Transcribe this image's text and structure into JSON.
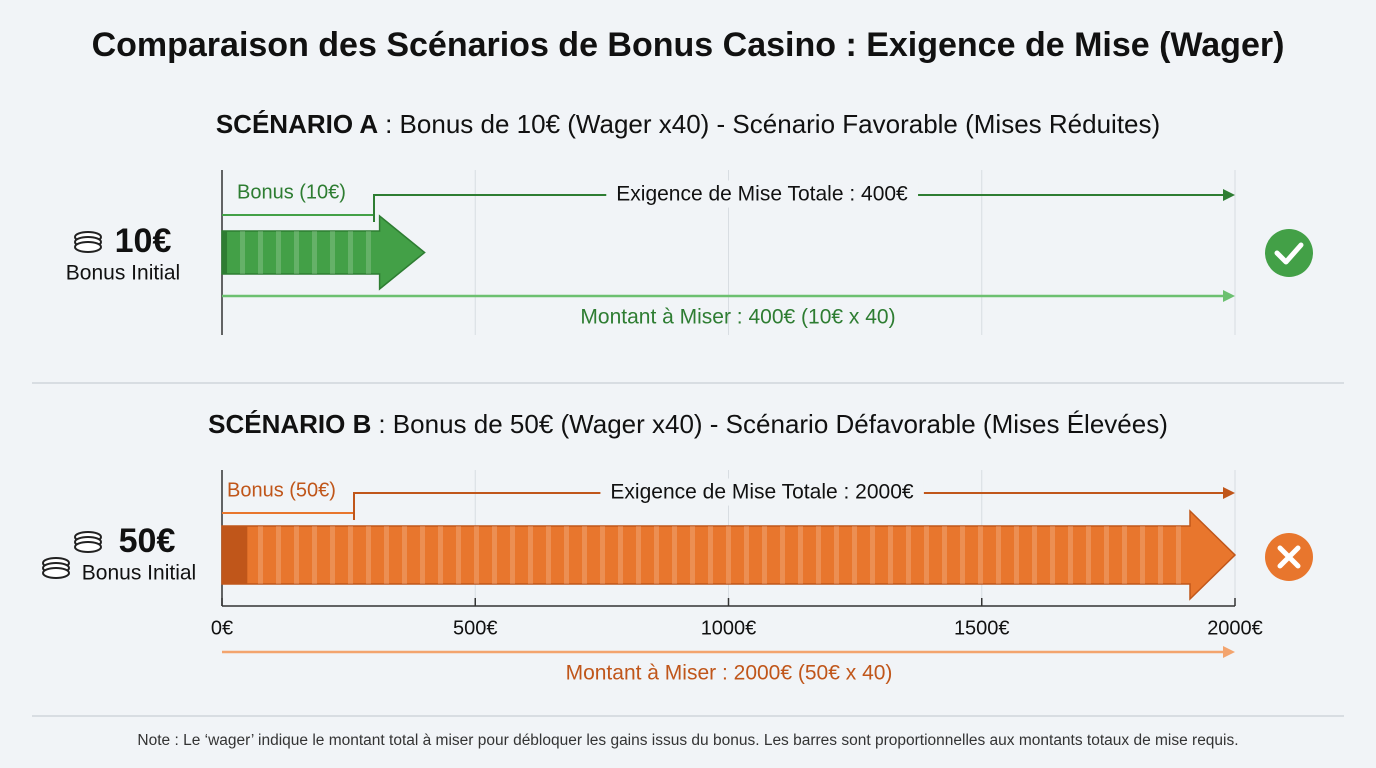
{
  "title": "Comparaison des Scénarios de Bonus Casino : Exigence de Mise (Wager)",
  "note": "Note : Le ‘wager’ indique le montant total à miser pour débloquer les gains issus du bonus. Les barres sont proportionnelles aux montants totaux de mise requis.",
  "chart_data": {
    "type": "bar",
    "xlim": [
      0,
      2000
    ],
    "xticks": [
      {
        "value": 0,
        "label": "0€"
      },
      {
        "value": 500,
        "label": "500€"
      },
      {
        "value": 1000,
        "label": "1000€"
      },
      {
        "value": 1500,
        "label": "1500€"
      },
      {
        "value": 2000,
        "label": "2000€"
      }
    ],
    "grid": true,
    "scenarios": [
      {
        "heading_bold": "SCÉNARIO A",
        "heading_rest": ": Bonus de 10€ (Wager x40) - Scénario Favorable (Mises Réduites)",
        "amount_label": "10€",
        "amount_caption": "Bonus Initial",
        "bonus_label": "Bonus (10€)",
        "bonus": 10,
        "wager_label": "Exigence de Mise Totale : 400€",
        "total": 400,
        "stake_label": "Montant à Miser : 400€ (10€ x 40)",
        "color": "#43a047",
        "dark_color": "#2e7d32",
        "light_color": "#6cc070"
      },
      {
        "heading_bold": "SCÉNARIO B",
        "heading_rest": ": Bonus de 50€ (Wager x40) - Scénario Défavorable (Mises Élevées)",
        "amount_label": "50€",
        "amount_caption": "Bonus Initial",
        "bonus_label": "Bonus (50€)",
        "bonus": 50,
        "wager_label": "Exigence de Mise Totale : 2000€",
        "total": 2000,
        "stake_label": "Montant à Miser : 2000€ (50€ x 40)",
        "color": "#e8762d",
        "dark_color": "#c0561a",
        "light_color": "#f3a46e"
      }
    ]
  }
}
